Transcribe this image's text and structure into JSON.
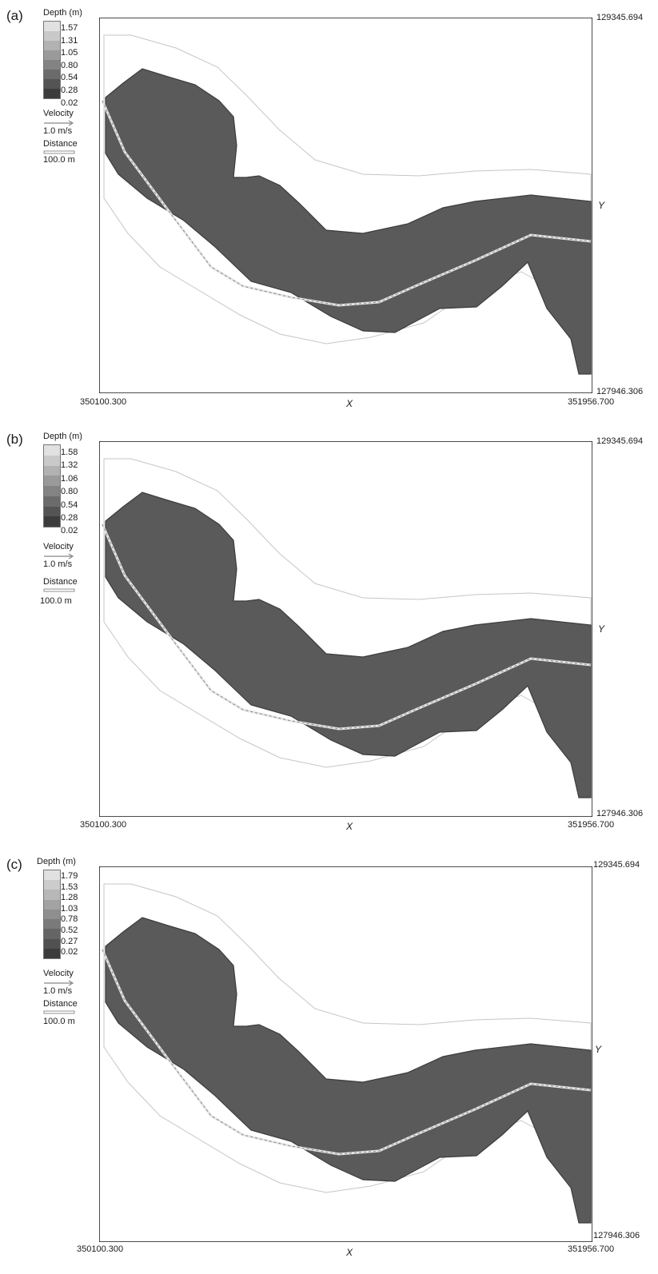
{
  "legend_title": "Depth (m)",
  "velocity_label": "Velocity",
  "velocity_value": "1.0 m/s",
  "distance_label": "Distance",
  "distance_value": "100.0 m",
  "x_axis_name": "X",
  "y_axis_name": "Y",
  "x_min": "350100.300",
  "x_max": "351956.700",
  "y_min": "127946.306",
  "y_max": "129345.694",
  "colors": {
    "channel": "#5e5e5e",
    "shallow": "#3f3f3f",
    "frame": "#111111",
    "grid_line": "#bbbbbb"
  },
  "panels": [
    {
      "label": "(a)",
      "depth_ticks": [
        "1.57",
        "1.31",
        "1.05",
        "0.80",
        "0.54",
        "0.28",
        "0.02"
      ]
    },
    {
      "label": "(b)",
      "depth_ticks": [
        "1.58",
        "1.32",
        "1.06",
        "0.80",
        "0.54",
        "0.28",
        "0.02"
      ]
    },
    {
      "label": "(c)",
      "depth_ticks": [
        "1.79",
        "1.53",
        "1.28",
        "1.03",
        "0.78",
        "0.52",
        "0.27",
        "0.02"
      ]
    }
  ]
}
